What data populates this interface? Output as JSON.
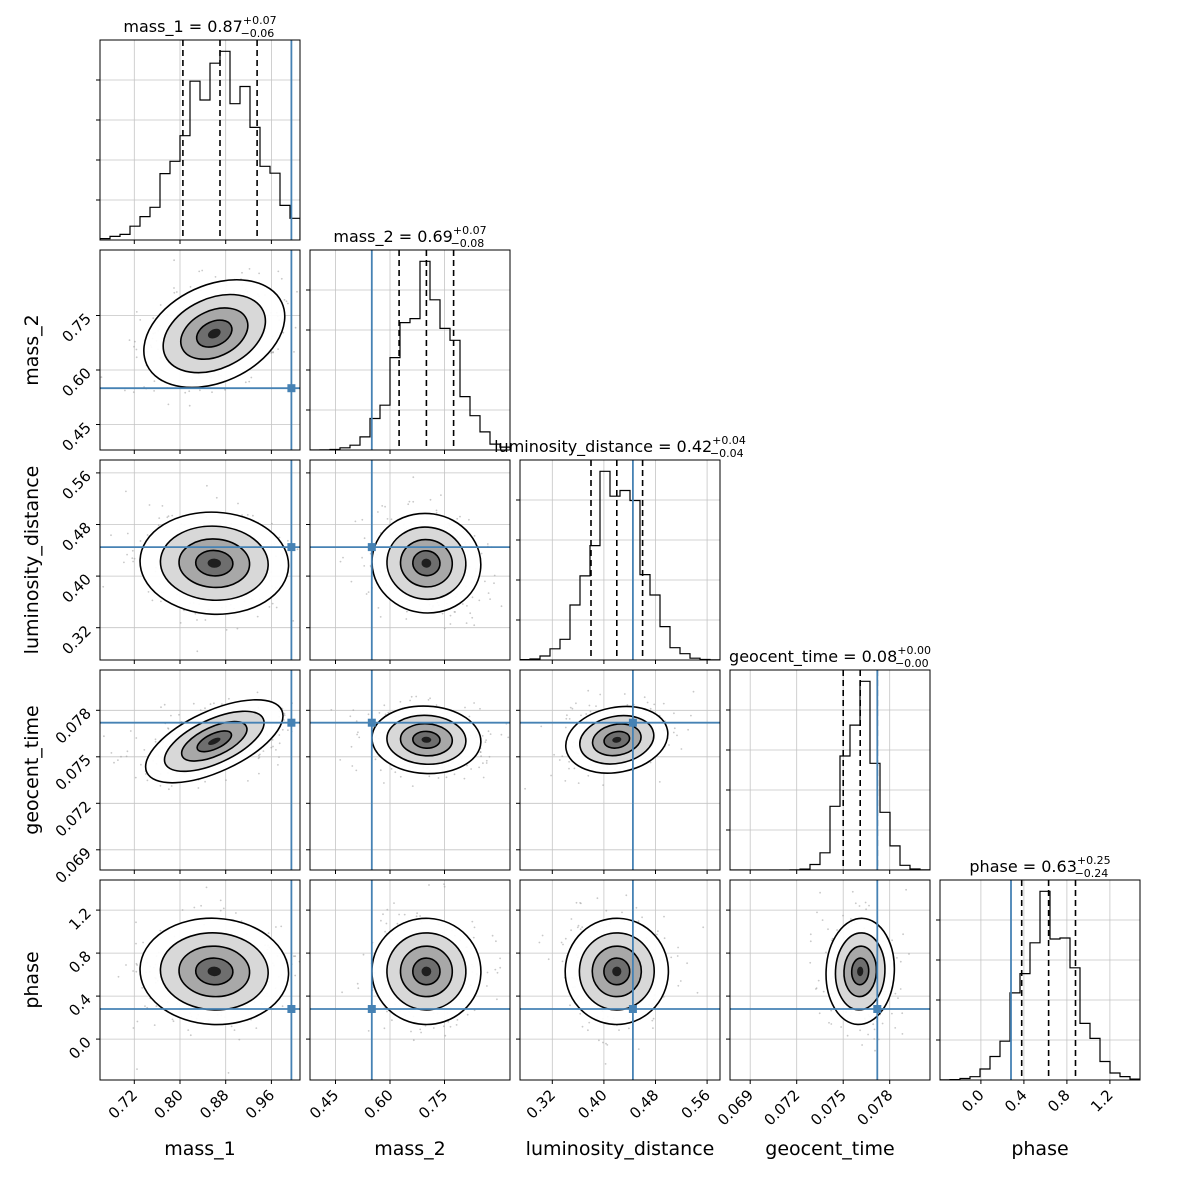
{
  "chart_data": {
    "type": "corner",
    "parameters": [
      {
        "key": "mass_1",
        "label": "mass_1",
        "range": [
          0.66,
          1.01
        ],
        "ticks": [
          0.72,
          0.8,
          0.88,
          0.96
        ],
        "tick_labels": [
          "0.72",
          "0.80",
          "0.88",
          "0.96"
        ],
        "median": 0.87,
        "plus": 0.07,
        "minus": 0.06,
        "title_prefix": "mass_1 = 0.87",
        "title_sup": "+0.07",
        "title_sub": "−0.06",
        "truth": 0.995,
        "peak": 0.87,
        "sigma": 0.065
      },
      {
        "key": "mass_2",
        "label": "mass_2",
        "range": [
          0.38,
          0.93
        ],
        "ticks": [
          0.45,
          0.6,
          0.75
        ],
        "tick_labels": [
          "0.45",
          "0.60",
          "0.75"
        ],
        "median": 0.69,
        "plus": 0.07,
        "minus": 0.08,
        "title_prefix": "mass_2 = 0.69",
        "title_sup": "+0.07",
        "title_sub": "−0.08",
        "truth": 0.55,
        "peak": 0.7,
        "sigma": 0.075
      },
      {
        "key": "luminosity_distance",
        "label": "luminosity_distance",
        "range": [
          0.27,
          0.58
        ],
        "ticks": [
          0.32,
          0.4,
          0.48,
          0.56
        ],
        "tick_labels": [
          "0.32",
          "0.40",
          "0.48",
          "0.56"
        ],
        "median": 0.42,
        "plus": 0.04,
        "minus": 0.04,
        "title_prefix": "luminosity_distance = 0.42",
        "title_sup": "+0.04",
        "title_sub": "−0.04",
        "truth": 0.445,
        "peak": 0.42,
        "sigma": 0.04
      },
      {
        "key": "geocent_time",
        "label": "geocent_time",
        "range": [
          0.0677,
          0.0806
        ],
        "ticks": [
          0.069,
          0.072,
          0.075,
          0.078
        ],
        "tick_labels": [
          "0.069",
          "0.072",
          "0.075",
          "0.078"
        ],
        "median": 0.08,
        "plus": 0.0,
        "minus": 0.0,
        "title_prefix": "geocent_time = 0.08",
        "title_sup": "+0.00",
        "title_sub": "−0.00",
        "truth": 0.0772,
        "peak": 0.0761,
        "sigma": 0.0011
      },
      {
        "key": "phase",
        "label": "phase",
        "range": [
          -0.38,
          1.48
        ],
        "ticks": [
          0.0,
          0.4,
          0.8,
          1.2
        ],
        "tick_labels": [
          "0.0",
          "0.4",
          "0.8",
          "1.2"
        ],
        "median": 0.63,
        "plus": 0.25,
        "minus": 0.24,
        "title_prefix": "phase = 0.63",
        "title_sup": "+0.25",
        "title_sub": "−0.24",
        "truth": 0.28,
        "peak": 0.63,
        "sigma": 0.25
      }
    ],
    "quantiles": [
      0.16,
      0.5,
      0.84
    ],
    "pair_centers": {
      "1-0": [
        0.86,
        0.7
      ],
      "2-0": [
        0.86,
        0.42
      ],
      "2-1": [
        0.7,
        0.42
      ],
      "3-0": [
        0.86,
        0.076
      ],
      "3-1": [
        0.7,
        0.0761
      ],
      "3-2": [
        0.42,
        0.0761
      ],
      "4-0": [
        0.86,
        0.63
      ],
      "4-1": [
        0.7,
        0.63
      ],
      "4-2": [
        0.42,
        0.63
      ],
      "4-3": [
        0.0761,
        0.63
      ]
    },
    "grid": true,
    "colors": {
      "truth": "#4682b4",
      "hist": "#000000",
      "density": "#000000",
      "points": "#9a9a9a",
      "grid": "#c4c4c4",
      "axes": "#000000"
    }
  }
}
